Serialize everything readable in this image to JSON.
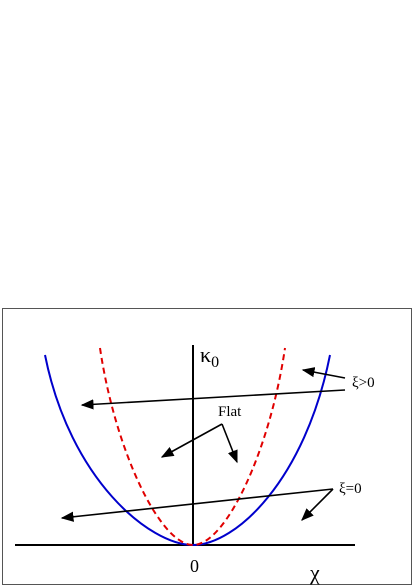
{
  "labels": {
    "y_axis": "κ",
    "y_axis_subscript": "0",
    "x_axis": "χ",
    "origin": "0",
    "flat": "Flat",
    "xi_positive": "ξ>0",
    "xi_zero": "ξ=0"
  }
}
